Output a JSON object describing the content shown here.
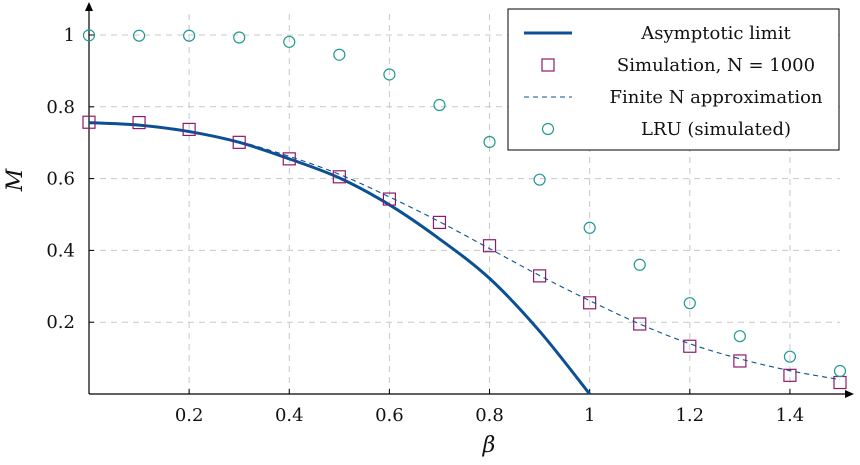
{
  "chart_data": {
    "type": "line",
    "xlabel": "β",
    "ylabel": "M",
    "xlim": [
      0,
      1.5
    ],
    "ylim": [
      0,
      1.08
    ],
    "xticks": [
      0.2,
      0.4,
      0.6,
      0.8,
      1,
      1.2,
      1.4
    ],
    "xtick_labels": [
      "0.2",
      "0.4",
      "0.6",
      "0.8",
      "1",
      "1.2",
      "1.4"
    ],
    "yticks": [
      0.2,
      0.4,
      0.6,
      0.8,
      1
    ],
    "ytick_labels": [
      "0.2",
      "0.4",
      "0.6",
      "0.8",
      "1"
    ],
    "grid": true,
    "legend_position": "top-right",
    "series": [
      {
        "name": "Asymptotic limit",
        "style": "solid-line",
        "color": "#0b4f95",
        "x": [
          0,
          0.1,
          0.2,
          0.3,
          0.4,
          0.5,
          0.6,
          0.7,
          0.8,
          0.9,
          1.0
        ],
        "y": [
          0.756,
          0.749,
          0.731,
          0.701,
          0.655,
          0.602,
          0.527,
          0.432,
          0.322,
          0.175,
          0.0
        ]
      },
      {
        "name": "Simulation, N = 1000",
        "style": "square-markers",
        "color": "#8e1a6a",
        "x": [
          0,
          0.1,
          0.2,
          0.3,
          0.4,
          0.5,
          0.6,
          0.7,
          0.8,
          0.9,
          1.0,
          1.1,
          1.2,
          1.3,
          1.4,
          1.5
        ],
        "y": [
          0.757,
          0.756,
          0.737,
          0.701,
          0.655,
          0.605,
          0.543,
          0.478,
          0.413,
          0.329,
          0.254,
          0.195,
          0.133,
          0.092,
          0.052,
          0.032
        ]
      },
      {
        "name": "Finite N approximation",
        "style": "dashed-line",
        "color": "#0b4f95",
        "x": [
          0,
          0.1,
          0.2,
          0.3,
          0.4,
          0.5,
          0.6,
          0.7,
          0.8,
          0.9,
          1.0,
          1.1,
          1.2,
          1.3,
          1.4,
          1.5
        ],
        "y": [
          0.756,
          0.749,
          0.731,
          0.703,
          0.662,
          0.612,
          0.549,
          0.48,
          0.405,
          0.33,
          0.26,
          0.195,
          0.14,
          0.098,
          0.065,
          0.04
        ]
      },
      {
        "name": "LRU (simulated)",
        "style": "circle-markers",
        "color": "#1f9a92",
        "x": [
          0,
          0.1,
          0.2,
          0.3,
          0.4,
          0.5,
          0.6,
          0.7,
          0.8,
          0.9,
          1.0,
          1.1,
          1.2,
          1.3,
          1.4,
          1.5
        ],
        "y": [
          0.999,
          0.998,
          0.998,
          0.993,
          0.981,
          0.945,
          0.89,
          0.805,
          0.702,
          0.597,
          0.463,
          0.36,
          0.253,
          0.161,
          0.104,
          0.064
        ]
      }
    ],
    "legend": [
      "Asymptotic limit",
      "Simulation, N = 1000",
      "Finite N approximation",
      "LRU (simulated)"
    ]
  }
}
